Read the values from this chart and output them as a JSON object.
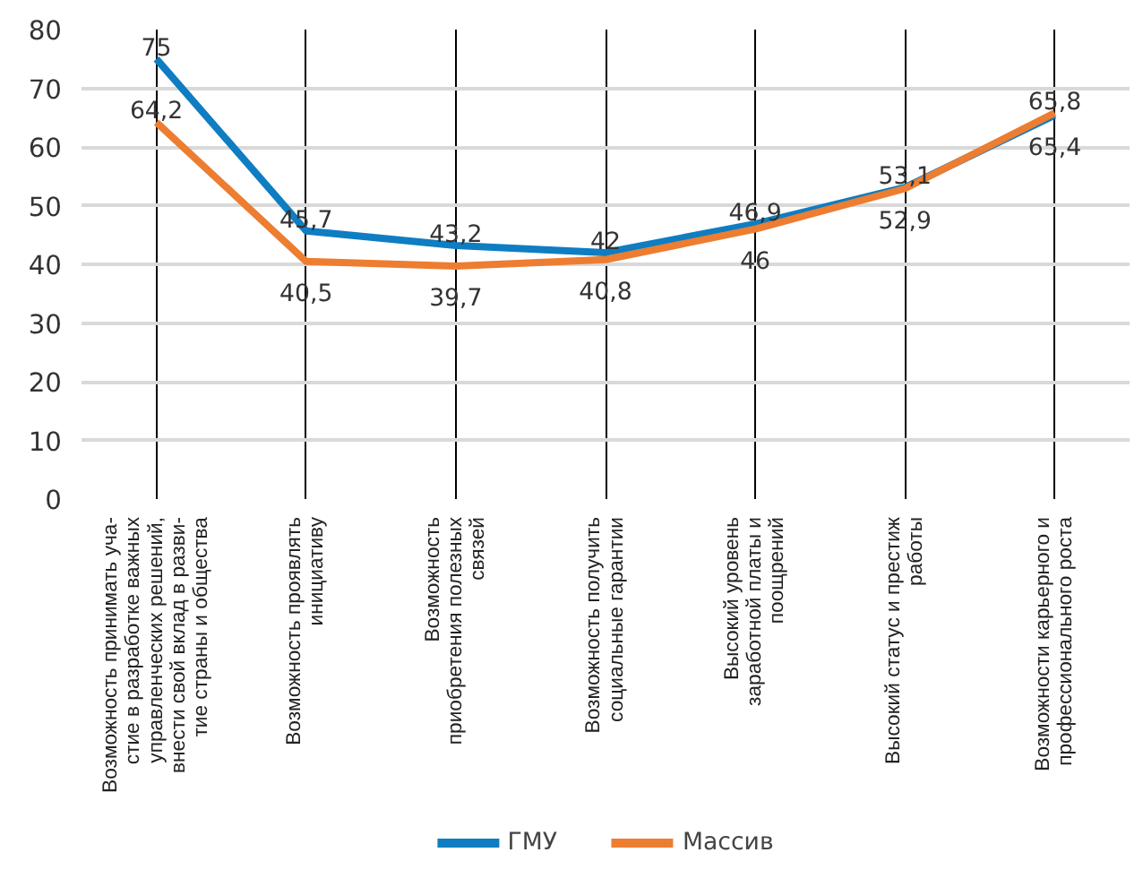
{
  "chart_data": {
    "type": "line",
    "categories": [
      "Возможность принимать уча-\nстие в разработке важных\nуправленческих решений,\nвнести свой вклад в разви-\nтие страны и общества",
      "Возможность проявлять\nинициативу",
      "Возможность\nприобретения полезных\nсвязей",
      "Возможность получить\nсоциальные гарантии",
      "Высокий уровень\nзаработной платы и\nпоощрений",
      "Высокий статус и престиж\nработы",
      "Возможности карьерного и\nпрофессионального роста"
    ],
    "series": [
      {
        "name": "ГМУ",
        "color": "#0f7dc2",
        "values": [
          75,
          45.7,
          43.2,
          42,
          46.9,
          53.1,
          65.4
        ],
        "value_labels": [
          "75",
          "45,7",
          "43,2",
          "42",
          "46,9",
          "53,1",
          "65,4"
        ]
      },
      {
        "name": "Массив",
        "color": "#ed7d31",
        "values": [
          64.2,
          40.5,
          39.7,
          40.8,
          46,
          52.9,
          65.8
        ],
        "value_labels": [
          "64,2",
          "40,5",
          "39,7",
          "40,8",
          "46",
          "52,9",
          "65,8"
        ]
      }
    ],
    "ylim": [
      0,
      80
    ],
    "yticks": [
      0,
      10,
      20,
      30,
      40,
      50,
      60,
      70,
      80
    ],
    "grid": true,
    "legend": "bottom",
    "marker": "none",
    "line_style": "solid"
  }
}
